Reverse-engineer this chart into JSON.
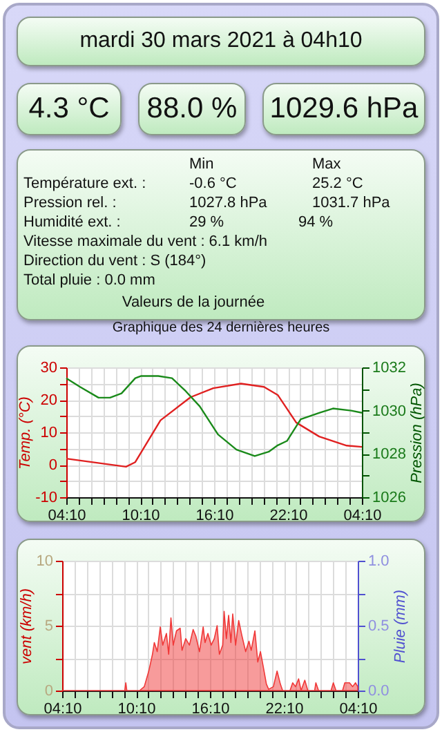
{
  "chart_data": [
    {
      "type": "other",
      "title": "mardi 30 mars 2021 à 04h10",
      "annotations": [
        "4.3 °C",
        "88.0 %",
        "1029.6 hPa",
        "Min",
        "Max",
        "Température ext. :",
        "-0.6 °C",
        "25.2 °C",
        "Pression rel. :",
        "1027.8 hPa",
        "1031.7 hPa",
        "Humidité ext. :",
        "29 %",
        "94 %",
        "Vitesse maximale du vent : 6.1 km/h",
        "Direction du vent : S (184°)",
        "Total pluie : 0.0 mm",
        "Valeurs de la journée"
      ]
    },
    {
      "type": "line",
      "title": "Graphique des 24 dernières heures",
      "ylabel": "Temp. (°C)",
      "y2label": "Pression (hPa)",
      "grid": true,
      "xlim": [
        "2021-03-29T04:10",
        "2021-03-30T04:10"
      ],
      "xticks": [
        {
          "value": "2021-03-29T04:10",
          "label": "04:10"
        },
        {
          "value": "2021-03-29T05:10",
          "label": null
        },
        {
          "value": "2021-03-29T06:10",
          "label": null
        },
        {
          "value": "2021-03-29T07:10",
          "label": null
        },
        {
          "value": "2021-03-29T08:10",
          "label": null
        },
        {
          "value": "2021-03-29T09:10",
          "label": null
        },
        {
          "value": "2021-03-29T10:10",
          "label": "10:10"
        },
        {
          "value": "2021-03-29T11:10",
          "label": null
        },
        {
          "value": "2021-03-29T12:10",
          "label": null
        },
        {
          "value": "2021-03-29T13:10",
          "label": null
        },
        {
          "value": "2021-03-29T14:10",
          "label": null
        },
        {
          "value": "2021-03-29T15:10",
          "label": null
        },
        {
          "value": "2021-03-29T16:10",
          "label": "16:10"
        },
        {
          "value": "2021-03-29T17:10",
          "label": null
        },
        {
          "value": "2021-03-29T18:10",
          "label": null
        },
        {
          "value": "2021-03-29T19:10",
          "label": null
        },
        {
          "value": "2021-03-29T20:10",
          "label": null
        },
        {
          "value": "2021-03-29T21:10",
          "label": null
        },
        {
          "value": "2021-03-29T22:10",
          "label": "22:10"
        },
        {
          "value": "2021-03-29T23:10",
          "label": null
        },
        {
          "value": "2021-03-30T00:10",
          "label": null
        },
        {
          "value": "2021-03-30T01:10",
          "label": null
        },
        {
          "value": "2021-03-30T02:10",
          "label": null
        },
        {
          "value": "2021-03-30T03:10",
          "label": null
        },
        {
          "value": "2021-03-30T04:10",
          "label": "04:10"
        }
      ],
      "ylim": [
        -10,
        30
      ],
      "yticks": [
        -10,
        {
          "value": -5,
          "label": null
        },
        0,
        {
          "value": 5,
          "label": null
        },
        10,
        {
          "value": 15,
          "label": null
        },
        20,
        {
          "value": 25,
          "label": null
        },
        30
      ],
      "y2lim": [
        1026,
        1032
      ],
      "y2ticks": [
        1026,
        {
          "value": 1027,
          "label": null
        },
        1028,
        {
          "value": 1029,
          "label": null
        },
        1030,
        {
          "value": 1031,
          "label": null
        },
        1032
      ],
      "series": [
        {
          "color": "#e02020",
          "x": [
            "2021-03-29T04:10",
            "2021-03-29T09:01",
            "2021-03-29T09:46",
            "2021-03-29T11:49",
            "2021-03-29T14:15",
            "2021-03-29T16:06",
            "2021-03-29T18:21",
            "2021-03-29T20:13",
            "2021-03-29T21:20",
            "2021-03-29T22:50",
            "2021-03-30T00:42",
            "2021-03-30T02:56",
            "2021-03-30T04:10"
          ],
          "values": [
            1.9,
            -0.6,
            0.8,
            13.7,
            20.8,
            23.6,
            25.0,
            24.0,
            21.5,
            13.0,
            8.7,
            5.9,
            5.5
          ]
        },
        {
          "color": "#1a8a1a",
          "axis": "y2",
          "x": [
            "2021-03-29T04:10",
            "2021-03-29T05:17",
            "2021-03-29T06:47",
            "2021-03-29T07:43",
            "2021-03-29T08:39",
            "2021-03-29T09:46",
            "2021-03-29T10:13",
            "2021-03-29T11:38",
            "2021-03-29T12:45",
            "2021-03-29T13:52",
            "2021-03-29T15:00",
            "2021-03-29T16:29",
            "2021-03-29T17:59",
            "2021-03-29T19:28",
            "2021-03-29T20:36",
            "2021-03-29T21:20",
            "2021-03-29T22:05",
            "2021-03-29T23:12",
            "2021-03-30T00:42",
            "2021-03-30T01:49",
            "2021-03-30T03:18",
            "2021-03-30T04:10"
          ],
          "values": [
            1031.5,
            1031.1,
            1030.6,
            1030.6,
            1030.8,
            1031.5,
            1031.6,
            1031.6,
            1031.5,
            1030.9,
            1030.2,
            1028.9,
            1028.2,
            1027.9,
            1028.1,
            1028.4,
            1028.6,
            1029.6,
            1029.9,
            1030.1,
            1030.0,
            1029.9
          ]
        }
      ]
    },
    {
      "type": "area",
      "ylabel": "vent (km/h)",
      "y2label": "Pluie (mm)",
      "grid": true,
      "xlim": [
        "2021-03-29T04:10",
        "2021-03-30T04:10"
      ],
      "xticks": [
        {
          "value": "2021-03-29T04:10",
          "label": "04:10"
        },
        {
          "value": "2021-03-29T05:10",
          "label": null
        },
        {
          "value": "2021-03-29T06:10",
          "label": null
        },
        {
          "value": "2021-03-29T07:10",
          "label": null
        },
        {
          "value": "2021-03-29T08:10",
          "label": null
        },
        {
          "value": "2021-03-29T09:10",
          "label": null
        },
        {
          "value": "2021-03-29T10:10",
          "label": "10:10"
        },
        {
          "value": "2021-03-29T11:10",
          "label": null
        },
        {
          "value": "2021-03-29T12:10",
          "label": null
        },
        {
          "value": "2021-03-29T13:10",
          "label": null
        },
        {
          "value": "2021-03-29T14:10",
          "label": null
        },
        {
          "value": "2021-03-29T15:10",
          "label": null
        },
        {
          "value": "2021-03-29T16:10",
          "label": "16:10"
        },
        {
          "value": "2021-03-29T17:10",
          "label": null
        },
        {
          "value": "2021-03-29T18:10",
          "label": null
        },
        {
          "value": "2021-03-29T19:10",
          "label": null
        },
        {
          "value": "2021-03-29T20:10",
          "label": null
        },
        {
          "value": "2021-03-29T21:10",
          "label": null
        },
        {
          "value": "2021-03-29T22:10",
          "label": "22:10"
        },
        {
          "value": "2021-03-29T23:10",
          "label": null
        },
        {
          "value": "2021-03-30T00:10",
          "label": null
        },
        {
          "value": "2021-03-30T01:10",
          "label": null
        },
        {
          "value": "2021-03-30T02:10",
          "label": null
        },
        {
          "value": "2021-03-30T03:10",
          "label": null
        },
        {
          "value": "2021-03-30T04:10",
          "label": "04:10"
        }
      ],
      "ylim": [
        0,
        10
      ],
      "yticks": [
        0,
        {
          "value": 2.5,
          "label": null
        },
        5,
        {
          "value": 7.5,
          "label": null
        },
        10
      ],
      "y2lim": [
        0,
        1
      ],
      "y2ticks": [
        {
          "value": 0,
          "label": "0.0"
        },
        {
          "value": 0.25,
          "label": null
        },
        {
          "value": 0.5,
          "label": "0.5"
        },
        {
          "value": 0.75,
          "label": null
        },
        {
          "value": 1,
          "label": "1.0"
        }
      ],
      "series": [
        {
          "color": "#f03838",
          "x": [
            "2021-03-29T04:10",
            "2021-03-29T09:15",
            "2021-03-29T09:20",
            "2021-03-29T09:25",
            "2021-03-29T10:27",
            "2021-03-29T10:50",
            "2021-03-29T11:12",
            "2021-03-29T11:30",
            "2021-03-29T11:39",
            "2021-03-29T11:53",
            "2021-03-29T12:08",
            "2021-03-29T12:20",
            "2021-03-29T12:38",
            "2021-03-29T12:49",
            "2021-03-29T13:00",
            "2021-03-29T13:11",
            "2021-03-29T13:27",
            "2021-03-29T13:45",
            "2021-03-29T13:54",
            "2021-03-29T14:12",
            "2021-03-29T14:30",
            "2021-03-29T14:48",
            "2021-03-29T15:01",
            "2021-03-29T15:19",
            "2021-03-29T15:37",
            "2021-03-29T15:46",
            "2021-03-29T16:00",
            "2021-03-29T16:16",
            "2021-03-29T16:31",
            "2021-03-29T16:45",
            "2021-03-29T16:56",
            "2021-03-29T17:12",
            "2021-03-29T17:19",
            "2021-03-29T17:30",
            "2021-03-29T17:41",
            "2021-03-29T17:52",
            "2021-03-29T18:01",
            "2021-03-29T18:15",
            "2021-03-29T18:30",
            "2021-03-29T18:46",
            "2021-03-29T19:04",
            "2021-03-29T19:20",
            "2021-03-29T19:31",
            "2021-03-29T19:49",
            "2021-03-29T20:03",
            "2021-03-29T20:16",
            "2021-03-29T20:29",
            "2021-03-29T20:45",
            "2021-03-29T20:56",
            "2021-03-29T21:19",
            "2021-03-29T21:37",
            "2021-03-29T21:53",
            "2021-03-29T22:04",
            "2021-03-29T22:40",
            "2021-03-29T22:53",
            "2021-03-29T23:07",
            "2021-03-29T23:22",
            "2021-03-29T23:34",
            "2021-03-29T23:52",
            "2021-03-30T00:07",
            "2021-03-30T00:40",
            "2021-03-30T00:46",
            "2021-03-30T00:59",
            "2021-03-30T02:00",
            "2021-03-30T02:11",
            "2021-03-30T02:24",
            "2021-03-30T02:56",
            "2021-03-30T03:07",
            "2021-03-30T03:30",
            "2021-03-30T03:45",
            "2021-03-30T03:59",
            "2021-03-30T04:10"
          ],
          "values": [
            0,
            0,
            0.6,
            0,
            0,
            0.3,
            1.5,
            2.8,
            3.7,
            3.0,
            4.9,
            3.5,
            4.4,
            2.8,
            5.6,
            3.5,
            4.6,
            4.8,
            3.1,
            4.0,
            3.5,
            4.7,
            4.2,
            3.0,
            4.9,
            3.7,
            4.4,
            3.5,
            4.0,
            5.0,
            2.8,
            3.5,
            6.1,
            4.0,
            5.8,
            3.7,
            5.9,
            3.5,
            5.4,
            4.2,
            3.0,
            3.8,
            3.1,
            4.6,
            2.2,
            3.0,
            1.9,
            0.5,
            0.1,
            0.3,
            1.5,
            0.5,
            0,
            0,
            0.6,
            0.3,
            0.9,
            0,
            0.8,
            0,
            0,
            0.6,
            0,
            0,
            0.6,
            0,
            0,
            0.6,
            0.6,
            0.3,
            0.6,
            0.3
          ]
        }
      ]
    }
  ]
}
